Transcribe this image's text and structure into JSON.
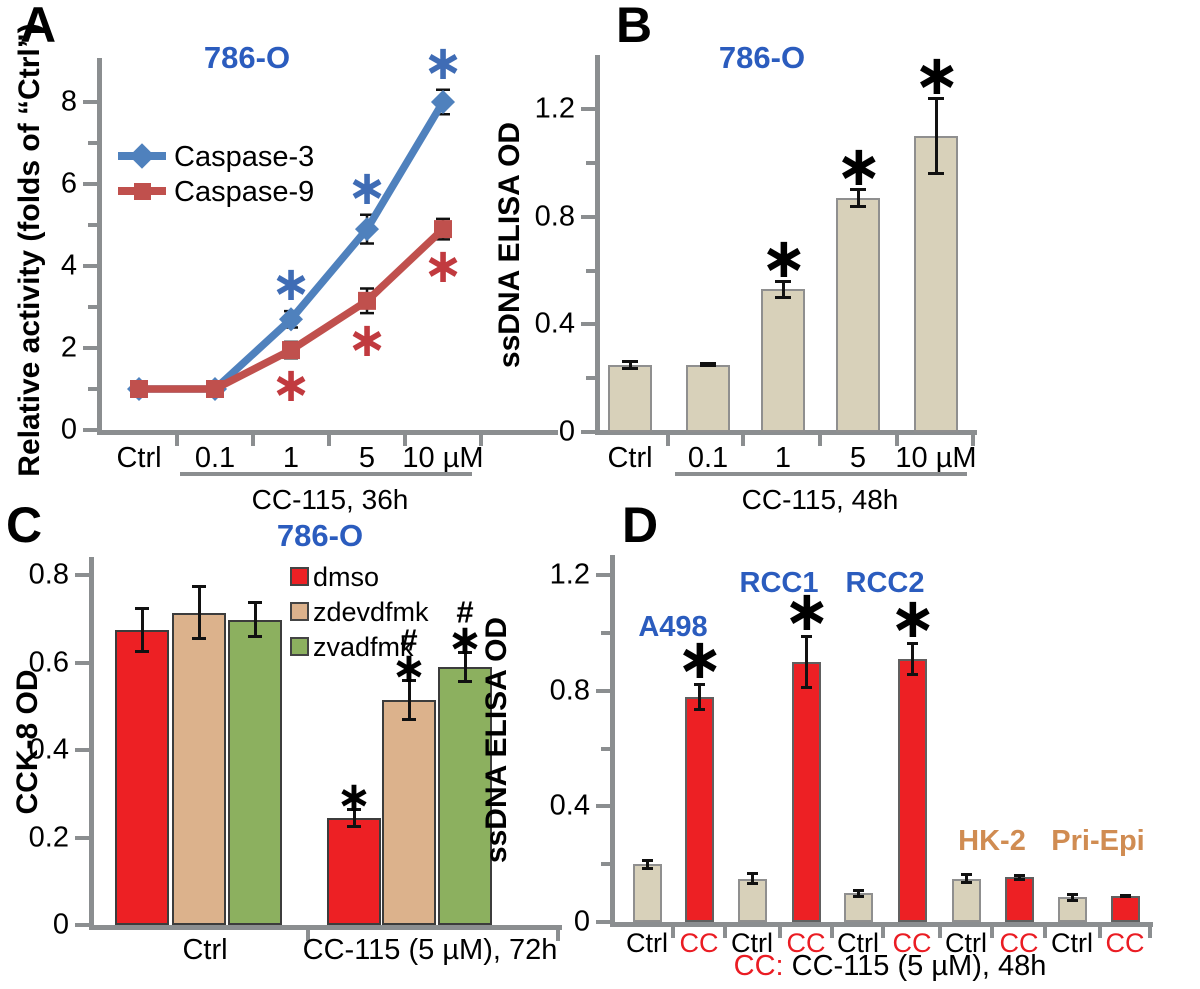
{
  "colors": {
    "axis": "#8b8e90",
    "error_bar": "#111111",
    "title_blue": "#2b5cbe",
    "significance_black": "#000000"
  },
  "chart_data": [
    {
      "panel": "A",
      "type": "line",
      "title": "786-O",
      "ylabel": "Relative activity (folds of “Ctrl”)",
      "ylim": [
        0,
        9.1
      ],
      "yticks": [
        0,
        2,
        4,
        6,
        8
      ],
      "minor_yticks": [
        1,
        3,
        5,
        7
      ],
      "categories": [
        "Ctrl",
        "0.1",
        "1",
        "5",
        "10 µM"
      ],
      "treatment_label": "CC-115, 36h",
      "legend_position": "upper-left",
      "series": [
        {
          "name": "Caspase-3",
          "color": "#4f81bd",
          "sig_color": "#3f6cb5",
          "marker": "diamond",
          "sig_side": "above",
          "values": [
            1,
            1,
            2.7,
            4.9,
            8.0
          ],
          "errors": [
            0.08,
            0.08,
            0.2,
            0.35,
            0.3
          ],
          "significance": [
            "",
            "",
            "*",
            "*",
            "*"
          ]
        },
        {
          "name": "Caspase-9",
          "color": "#c0504d",
          "sig_color": "#c13a3f",
          "marker": "square",
          "sig_side": "below",
          "values": [
            1,
            1,
            1.95,
            3.15,
            4.9
          ],
          "errors": [
            0.12,
            0.12,
            0.2,
            0.3,
            0.25
          ],
          "significance": [
            "",
            "",
            "*",
            "*",
            "*"
          ]
        }
      ]
    },
    {
      "panel": "B",
      "type": "bar",
      "title": "786-O",
      "ylabel": "ssDNA ELISA OD",
      "ylim": [
        0,
        1.4
      ],
      "yticks": [
        0,
        0.4,
        0.8,
        1.2
      ],
      "minor_yticks": [
        0.2,
        0.6,
        1.0
      ],
      "categories": [
        "Ctrl",
        "0.1",
        "1",
        "5",
        "10 µM"
      ],
      "treatment_label": "CC-115, 48h",
      "bar_color": "#d8d1ba",
      "bar_border": "#8f8f8f",
      "values": [
        0.25,
        0.25,
        0.53,
        0.87,
        1.1
      ],
      "errors": [
        0.015,
        0.006,
        0.03,
        0.035,
        0.14
      ],
      "significance": [
        "",
        "",
        "*",
        "*",
        "*"
      ]
    },
    {
      "panel": "C",
      "type": "grouped_bar",
      "title": "786-O",
      "ylabel": "CCK-8 OD",
      "ylim": [
        0,
        0.84
      ],
      "yticks": [
        0,
        0.2,
        0.4,
        0.6,
        0.8
      ],
      "minor_yticks": [],
      "categories": [
        "Ctrl",
        "CC-115 (5 µM), 72h"
      ],
      "bar_border": "#3c3c3c",
      "series": [
        {
          "name": "dmso",
          "color": "#ed2024",
          "values": [
            0.675,
            0.245
          ],
          "errors": [
            0.05,
            0.02
          ],
          "significance": [
            "",
            "*"
          ]
        },
        {
          "name": "zdevdfmk",
          "color": "#dcb28c",
          "values": [
            0.715,
            0.515
          ],
          "errors": [
            0.06,
            0.045
          ],
          "significance": [
            "",
            "#*"
          ]
        },
        {
          "name": "zvadfmk",
          "color": "#8cb05f",
          "values": [
            0.698,
            0.59
          ],
          "errors": [
            0.04,
            0.035
          ],
          "significance": [
            "",
            "#*"
          ]
        }
      ]
    },
    {
      "panel": "D",
      "type": "paired_bar",
      "ylabel": "ssDNA ELISA OD",
      "ylim": [
        0,
        1.32
      ],
      "yticks": [
        0,
        0.4,
        0.8,
        1.2
      ],
      "minor_yticks": [
        0.2,
        0.6,
        1.0
      ],
      "bar_labels": [
        "Ctrl",
        "CC"
      ],
      "ctrl_color": "#d8d1ba",
      "cc_color": "#ed2024",
      "ctrl_border": "#8f8f8f",
      "cc_border": "#606060",
      "ctrl_label_color": "#000000",
      "cc_label_color": "#ea1c23",
      "groups": [
        {
          "name": "A498",
          "label_color": "#2b5cbe",
          "values": [
            0.2,
            0.78
          ],
          "errors": [
            0.015,
            0.045
          ],
          "significance": [
            "",
            "*"
          ]
        },
        {
          "name": "RCC1",
          "label_color": "#2b5cbe",
          "values": [
            0.15,
            0.9
          ],
          "errors": [
            0.02,
            0.09
          ],
          "significance": [
            "",
            "*"
          ]
        },
        {
          "name": "RCC2",
          "label_color": "#2b5cbe",
          "values": [
            0.1,
            0.91
          ],
          "errors": [
            0.012,
            0.055
          ],
          "significance": [
            "",
            "*"
          ]
        },
        {
          "name": "HK-2",
          "label_color": "#d08c52",
          "values": [
            0.15,
            0.155
          ],
          "errors": [
            0.015,
            0.008
          ],
          "significance": [
            "",
            ""
          ]
        },
        {
          "name": "Pri-Epi",
          "label_color": "#d08c52",
          "values": [
            0.085,
            0.09
          ],
          "errors": [
            0.012,
            0.005
          ],
          "significance": [
            "",
            ""
          ]
        }
      ],
      "caption_prefix": "CC:",
      "caption_text": " CC-115 (5 µM), 48h"
    }
  ]
}
